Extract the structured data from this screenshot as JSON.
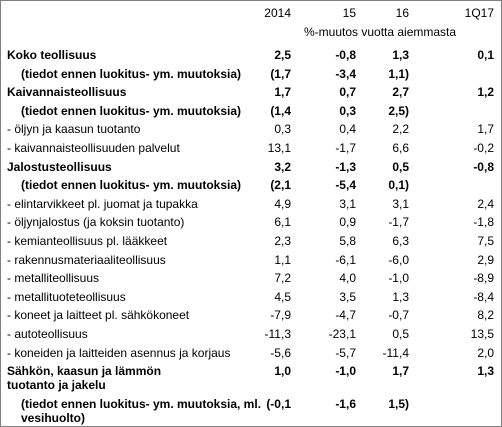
{
  "header": {
    "columns": [
      "2014",
      "15",
      "16",
      "1Q17"
    ],
    "note": "%-muutos vuotta aiemmasta"
  },
  "table": {
    "rows": [
      {
        "label": "Koko teollisuus",
        "values": [
          "2,5",
          "-0,8",
          "1,3",
          "0,1"
        ],
        "bold": true
      },
      {
        "label": "(tiedot ennen luokitus- ym. muutoksia)",
        "values": [
          "(1,7",
          "-3,4",
          "1,1)"
        ],
        "bold": true,
        "indent": true
      },
      {
        "label": "Kaivannaisteollisuus",
        "values": [
          "1,7",
          "0,7",
          "2,7",
          "1,2"
        ],
        "bold": true
      },
      {
        "label": "(tiedot ennen luokitus- ym. muutoksia)",
        "values": [
          "(1,4",
          "0,3",
          "2,5)"
        ],
        "bold": true,
        "indent": true
      },
      {
        "label": "- öljyn ja kaasun tuotanto",
        "values": [
          "0,3",
          "0,4",
          "2,2",
          "1,7"
        ],
        "bold": false
      },
      {
        "label": "- kaivannaisteollisuuden palvelut",
        "values": [
          "13,1",
          "-1,7",
          "6,6",
          "-0,2"
        ],
        "bold": false
      },
      {
        "label": "Jalostusteollisuus",
        "values": [
          "3,2",
          "-1,3",
          "0,5",
          "-0,8"
        ],
        "bold": true
      },
      {
        "label": "(tiedot ennen luokitus- ym. muutoksia)",
        "values": [
          "(2,1",
          "-5,4",
          "0,1)"
        ],
        "bold": true,
        "indent": true
      },
      {
        "label": "- elintarvikkeet pl. juomat ja tupakka",
        "values": [
          "4,9",
          "3,1",
          "3,1",
          "2,4"
        ],
        "bold": false
      },
      {
        "label": "- öljynjalostus (ja koksin tuotanto)",
        "values": [
          "6,1",
          "0,9",
          "-1,7",
          "-1,8"
        ],
        "bold": false
      },
      {
        "label": "- kemianteollisuus pl. lääkkeet",
        "values": [
          "2,3",
          "5,8",
          "6,3",
          "7,5"
        ],
        "bold": false
      },
      {
        "label": "- rakennusmateriaaliteollisuus",
        "values": [
          "1,1",
          "-6,1",
          "-6,0",
          "2,9"
        ],
        "bold": false
      },
      {
        "label": "- metalliteollisuus",
        "values": [
          "7,2",
          "4,0",
          "-1,0",
          "-8,9"
        ],
        "bold": false
      },
      {
        "label": "- metallituoteteollisuus",
        "values": [
          "4,5",
          "3,5",
          "1,3",
          "-8,4"
        ],
        "bold": false
      },
      {
        "label": "- koneet ja laitteet pl. sähkökoneet",
        "values": [
          "-7,9",
          "-4,7",
          "-0,7",
          "8,2"
        ],
        "bold": false
      },
      {
        "label": "- autoteollisuus",
        "values": [
          "-11,3",
          "-23,1",
          "0,5",
          "13,5"
        ],
        "bold": false
      },
      {
        "label": "- koneiden ja laitteiden asennus ja korjaus",
        "values": [
          "-5,6",
          "-5,7",
          "-11,4",
          "2,0"
        ],
        "bold": false
      },
      {
        "label": "Sähkön, kaasun ja lämmön tuotanto ja jakelu",
        "values": [
          "1,0",
          "-1,0",
          "1,7",
          "1,3"
        ],
        "bold": true
      },
      {
        "label": "(tiedot ennen luokitus- ym. muutoksia, ml. vesihuolto)",
        "values": [
          "(-0,1",
          "-1,6",
          "1,5)"
        ],
        "bold": true,
        "indent": true
      }
    ]
  }
}
